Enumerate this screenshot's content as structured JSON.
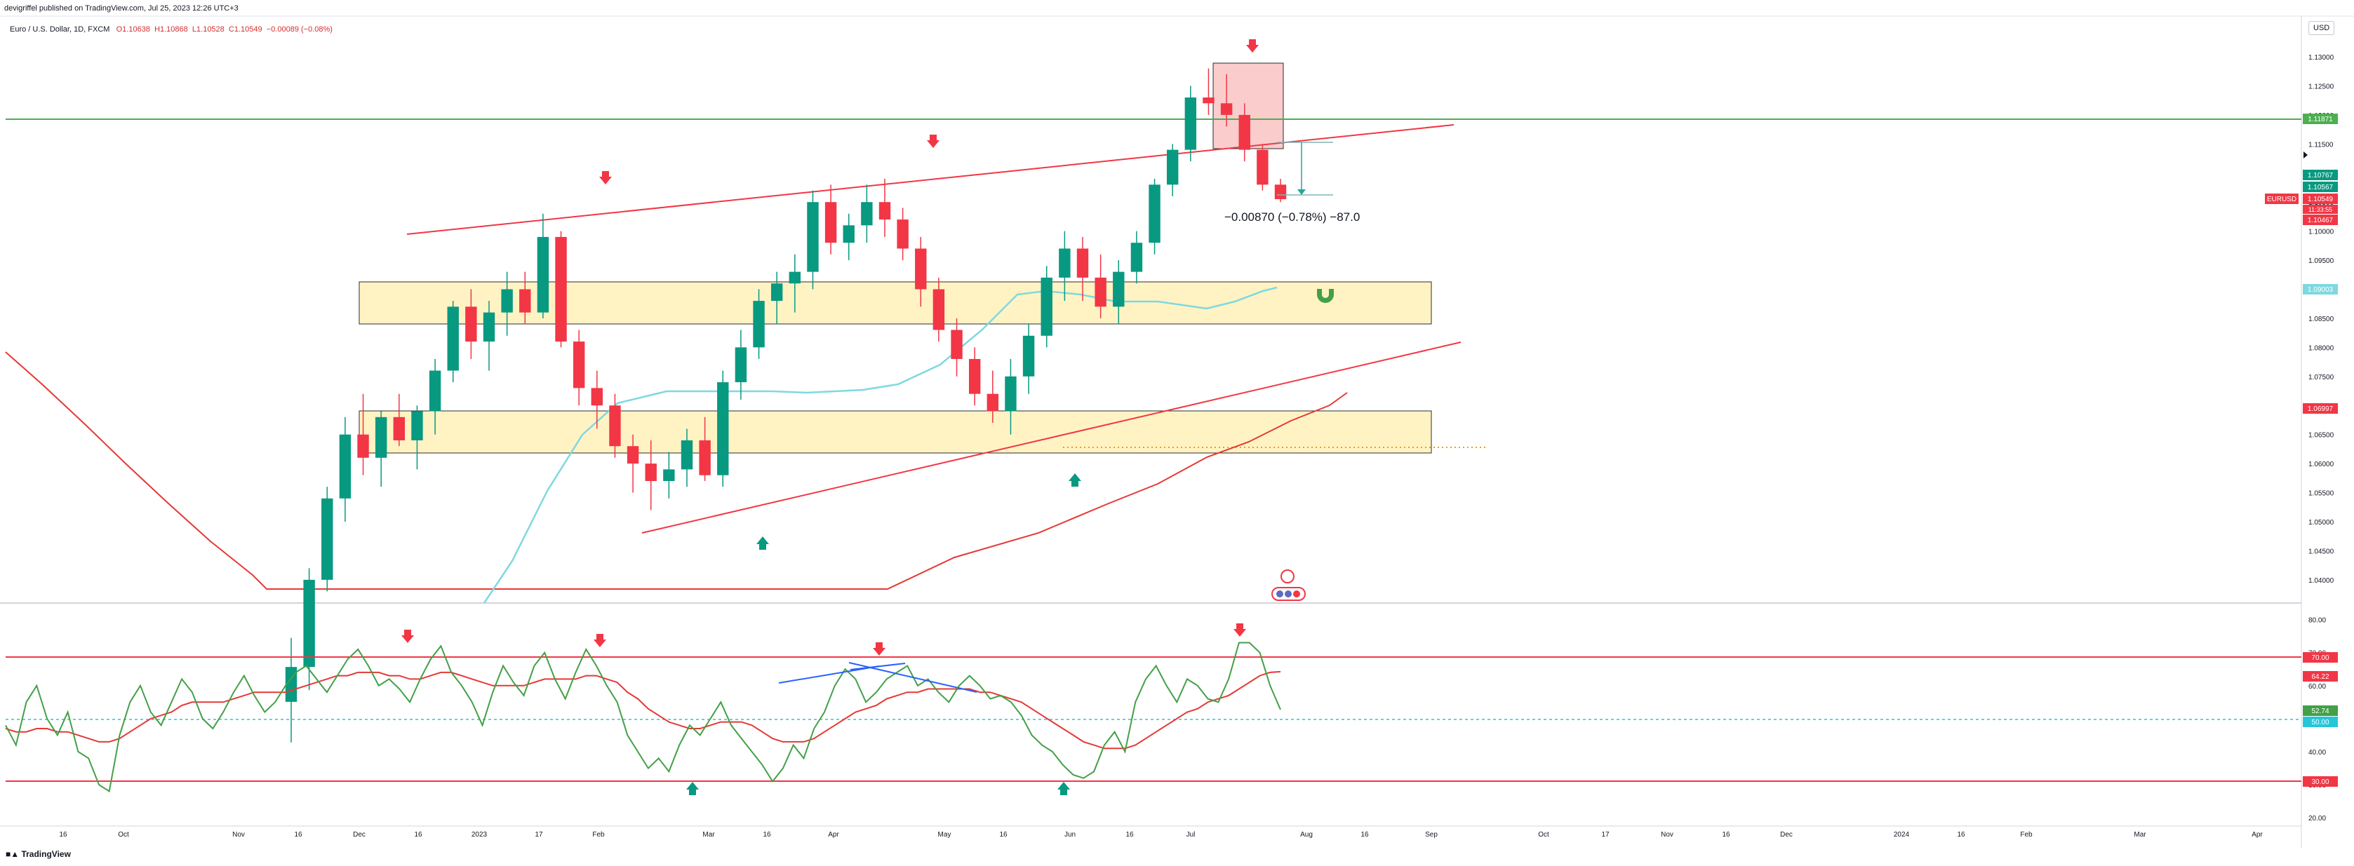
{
  "header": {
    "published": "devigriffel published on TradingView.com, Jul 25, 2023 12:26 UTC+3"
  },
  "symbol_bar": {
    "name": "Euro / U.S. Dollar, 1D, FXCM",
    "o": "O1.10638",
    "h": "H1.10868",
    "l": "L1.10528",
    "c": "C1.10549",
    "chg": "−0.00089 (−0.08%)"
  },
  "currency_button": "USD",
  "watermark": "TradingView",
  "colors": {
    "green_candle": "#089981",
    "red_candle": "#f23645",
    "zone_fill": "#fff3c4",
    "trend": "#f23645",
    "ma_fast": "#7fd8e0",
    "ma_slow": "#e53935",
    "resistance": "#4caf50",
    "rsi": "#43a047",
    "rsi_ma": "#e53935",
    "rsi_div": "#2962ff"
  },
  "chart_data": [
    {
      "type": "candlestick",
      "title": "Euro / U.S. Dollar, 1D, FXCM",
      "ylim": [
        1.036,
        1.137
      ],
      "price_axis_ticks": [
        "1.13000",
        "1.12500",
        "1.12000",
        "1.11500",
        "1.11000",
        "1.10500",
        "1.10000",
        "1.09500",
        "1.09000",
        "1.08500",
        "1.08000",
        "1.07500",
        "1.07000",
        "1.06500",
        "1.06000",
        "1.05500",
        "1.05000",
        "1.04500",
        "1.04000"
      ],
      "time_axis_labels": [
        "16",
        "Oct",
        "Nov",
        "16",
        "Dec",
        "16",
        "2023",
        "17",
        "Feb",
        "Mar",
        "16",
        "Apr",
        "May",
        "16",
        "Jun",
        "16",
        "Jul",
        "Aug",
        "16",
        "Sep",
        "Oct",
        "17",
        "Nov",
        "16",
        "Dec",
        "2024",
        "16",
        "Feb",
        "Mar",
        "Apr"
      ],
      "candles_approx": [
        [
          1.019,
          1.03,
          1.012,
          1.025
        ],
        [
          1.025,
          1.042,
          1.021,
          1.04
        ],
        [
          1.04,
          1.056,
          1.038,
          1.054
        ],
        [
          1.054,
          1.068,
          1.05,
          1.065
        ],
        [
          1.065,
          1.072,
          1.058,
          1.061
        ],
        [
          1.061,
          1.069,
          1.056,
          1.068
        ],
        [
          1.068,
          1.072,
          1.063,
          1.064
        ],
        [
          1.064,
          1.07,
          1.059,
          1.069
        ],
        [
          1.069,
          1.078,
          1.065,
          1.076
        ],
        [
          1.076,
          1.088,
          1.074,
          1.087
        ],
        [
          1.087,
          1.09,
          1.078,
          1.081
        ],
        [
          1.081,
          1.088,
          1.076,
          1.086
        ],
        [
          1.086,
          1.093,
          1.082,
          1.09
        ],
        [
          1.09,
          1.093,
          1.084,
          1.086
        ],
        [
          1.086,
          1.103,
          1.085,
          1.099
        ],
        [
          1.099,
          1.1,
          1.08,
          1.081
        ],
        [
          1.081,
          1.083,
          1.07,
          1.073
        ],
        [
          1.073,
          1.076,
          1.066,
          1.07
        ],
        [
          1.07,
          1.072,
          1.061,
          1.063
        ],
        [
          1.063,
          1.065,
          1.055,
          1.06
        ],
        [
          1.06,
          1.064,
          1.052,
          1.057
        ],
        [
          1.057,
          1.062,
          1.054,
          1.059
        ],
        [
          1.059,
          1.066,
          1.056,
          1.064
        ],
        [
          1.064,
          1.068,
          1.057,
          1.058
        ],
        [
          1.058,
          1.076,
          1.056,
          1.074
        ],
        [
          1.074,
          1.083,
          1.071,
          1.08
        ],
        [
          1.08,
          1.09,
          1.078,
          1.088
        ],
        [
          1.088,
          1.093,
          1.084,
          1.091
        ],
        [
          1.091,
          1.096,
          1.086,
          1.093
        ],
        [
          1.093,
          1.107,
          1.09,
          1.105
        ],
        [
          1.105,
          1.108,
          1.096,
          1.098
        ],
        [
          1.098,
          1.103,
          1.095,
          1.101
        ],
        [
          1.101,
          1.108,
          1.098,
          1.105
        ],
        [
          1.105,
          1.109,
          1.099,
          1.102
        ],
        [
          1.102,
          1.104,
          1.095,
          1.097
        ],
        [
          1.097,
          1.099,
          1.087,
          1.09
        ],
        [
          1.09,
          1.092,
          1.081,
          1.083
        ],
        [
          1.083,
          1.085,
          1.075,
          1.078
        ],
        [
          1.078,
          1.08,
          1.07,
          1.072
        ],
        [
          1.072,
          1.076,
          1.067,
          1.069
        ],
        [
          1.069,
          1.078,
          1.065,
          1.075
        ],
        [
          1.075,
          1.084,
          1.072,
          1.082
        ],
        [
          1.082,
          1.094,
          1.08,
          1.092
        ],
        [
          1.092,
          1.1,
          1.088,
          1.097
        ],
        [
          1.097,
          1.099,
          1.088,
          1.092
        ],
        [
          1.092,
          1.096,
          1.085,
          1.087
        ],
        [
          1.087,
          1.095,
          1.084,
          1.093
        ],
        [
          1.093,
          1.1,
          1.091,
          1.098
        ],
        [
          1.098,
          1.109,
          1.096,
          1.108
        ],
        [
          1.108,
          1.115,
          1.106,
          1.114
        ],
        [
          1.114,
          1.125,
          1.112,
          1.123
        ],
        [
          1.123,
          1.128,
          1.12,
          1.122
        ],
        [
          1.122,
          1.127,
          1.118,
          1.12
        ],
        [
          1.12,
          1.122,
          1.112,
          1.114
        ],
        [
          1.114,
          1.115,
          1.107,
          1.108
        ],
        [
          1.108,
          1.109,
          1.105,
          1.1055
        ]
      ]
    },
    {
      "type": "line",
      "title": "RSI",
      "ylim": [
        17.5,
        85
      ],
      "axis_ticks": [
        "80.00",
        "70.00",
        "60.00",
        "50.00",
        "40.00",
        "30.00",
        "20.00"
      ],
      "levels": {
        "upper": 70,
        "middle": 50,
        "lower": 30
      },
      "last_values": {
        "rsi": 52.74,
        "rsi_ma": 64.22
      },
      "series": [
        {
          "name": "RSI",
          "values": [
            48,
            42,
            55,
            60,
            50,
            45,
            52,
            40,
            38,
            30,
            28,
            45,
            55,
            60,
            52,
            48,
            55,
            62,
            58,
            50,
            47,
            52,
            58,
            63,
            57,
            52,
            55,
            60,
            64,
            66,
            62,
            58,
            63,
            68,
            71,
            66,
            60,
            62,
            59,
            55,
            62,
            68,
            72,
            64,
            60,
            55,
            48,
            58,
            66,
            61,
            57,
            66,
            70,
            62,
            56,
            64,
            71,
            66,
            60,
            55,
            45,
            40,
            35,
            38,
            34,
            42,
            48,
            45,
            50,
            55,
            48,
            44,
            40,
            36,
            31,
            35,
            42,
            38,
            47,
            52,
            60,
            65,
            62,
            55,
            58,
            62,
            64,
            66,
            60,
            62,
            58,
            55,
            60,
            63,
            60,
            56,
            57,
            55,
            51,
            45,
            42,
            40,
            36,
            33,
            32,
            34,
            42,
            46,
            40,
            55,
            62,
            66,
            60,
            55,
            62,
            60,
            56,
            55,
            62,
            73,
            73,
            70,
            60,
            52.74
          ]
        },
        {
          "name": "RSI MA",
          "values": [
            47,
            46,
            46,
            47,
            47,
            46,
            46,
            45,
            44,
            43,
            43,
            44,
            46,
            48,
            50,
            51,
            52,
            54,
            55,
            55,
            55,
            55,
            56,
            57,
            58,
            58,
            58,
            58,
            59,
            60,
            61,
            62,
            63,
            63,
            64,
            64,
            64,
            63,
            63,
            62,
            62,
            63,
            64,
            64,
            63,
            62,
            61,
            60,
            60,
            60,
            60,
            61,
            62,
            62,
            62,
            62,
            63,
            63,
            62,
            61,
            58,
            56,
            53,
            51,
            49,
            48,
            47,
            47,
            48,
            49,
            49,
            49,
            48,
            46,
            44,
            43,
            43,
            43,
            44,
            46,
            48,
            50,
            52,
            53,
            54,
            56,
            57,
            58,
            58,
            59,
            59,
            59,
            59,
            59,
            58,
            58,
            57,
            56,
            55,
            53,
            51,
            49,
            47,
            45,
            43,
            42,
            41,
            41,
            41,
            42,
            44,
            46,
            48,
            50,
            52,
            53,
            55,
            56,
            57,
            59,
            61,
            63,
            64,
            64.22
          ]
        }
      ]
    }
  ],
  "price_labels": {
    "resistance": "1.11871",
    "high": "1.10767",
    "level_2": "1.10567",
    "symbol": "EURUSD",
    "last": "1.10549",
    "countdown": "11:33:55",
    "low": "1.10467",
    "ma_fast": "1.09003",
    "ma_slow": "1.06997"
  },
  "rsi_labels": {
    "upper": "70.00",
    "ma": "64.22",
    "rsi": "52.74",
    "mid": "50.00",
    "lower": "30.00"
  },
  "annotations": {
    "measure": "−0.00870 (−0.78%) −87.0"
  }
}
